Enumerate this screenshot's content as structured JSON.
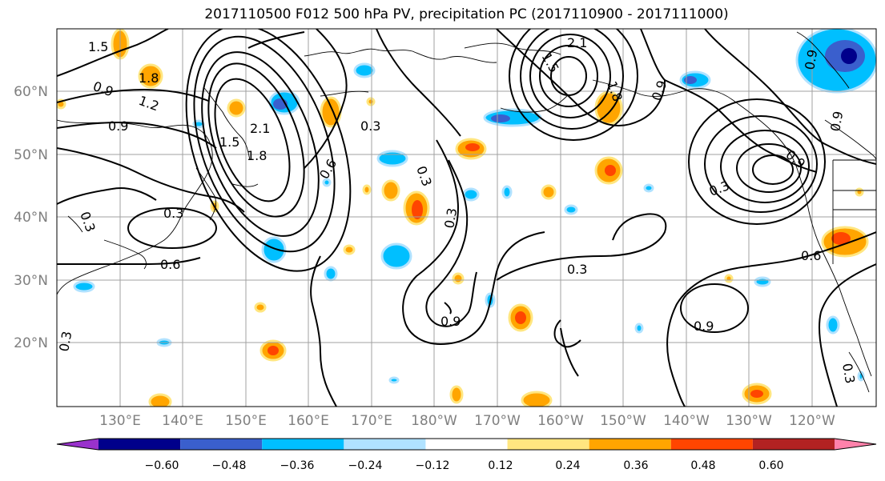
{
  "title": "2017110500 F012 500 hPa PV, precipitation PC (2017110900 - 2017111000)",
  "lat_labels": [
    "60°N",
    "50°N",
    "40°N",
    "30°N",
    "20°N"
  ],
  "lon_labels": [
    "130°E",
    "140°E",
    "150°E",
    "160°E",
    "170°E",
    "180°W",
    "170°W",
    "160°W",
    "150°W",
    "140°W",
    "130°W",
    "120°W"
  ],
  "contour_labels": [
    "1.5",
    "1.8",
    "0.9",
    "1.2",
    "0.9",
    "2.1",
    "1.8",
    "1.5",
    "0.6",
    "0.3",
    "0.3",
    "0.6",
    "0.3",
    "0.9",
    "0.3",
    "0.3",
    "1.5",
    "2.1",
    "1.8",
    "0.9",
    "0.3",
    "0.9",
    "0.3",
    "0.6",
    "0.9",
    "0.3",
    "0.9",
    "0.3",
    "0.9"
  ],
  "colorbar": {
    "tick_labels": [
      "−0.60",
      "−0.48",
      "−0.36",
      "−0.24",
      "−0.12",
      "0.12",
      "0.24",
      "0.36",
      "0.48",
      "0.60"
    ],
    "colors": [
      "#9932cc",
      "#00008b",
      "#3a5fcd",
      "#00bfff",
      "#b0e2ff",
      "#ffffff",
      "#ffe680",
      "#ffa500",
      "#ff4500",
      "#b22222",
      "#ff82ab"
    ]
  },
  "colors": {
    "contour": "#000000",
    "grid": "#a0a0a0",
    "coast": "#000000",
    "axis_label": "#7f7f7f"
  }
}
